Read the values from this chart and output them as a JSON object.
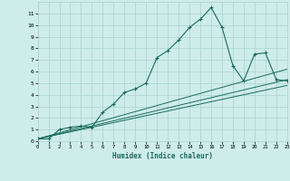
{
  "xlabel": "Humidex (Indice chaleur)",
  "bg_color": "#ceecea",
  "grid_color": "#aad4d0",
  "line_color": "#1a6b5e",
  "xlim": [
    0,
    23
  ],
  "ylim": [
    0,
    12
  ],
  "xticks": [
    0,
    1,
    2,
    3,
    4,
    5,
    6,
    7,
    8,
    9,
    10,
    11,
    12,
    13,
    14,
    15,
    16,
    17,
    18,
    19,
    20,
    21,
    22,
    23
  ],
  "yticks": [
    0,
    1,
    2,
    3,
    4,
    5,
    6,
    7,
    8,
    9,
    10,
    11
  ],
  "series1_x": [
    0,
    1,
    2,
    3,
    4,
    5,
    6,
    7,
    8,
    9,
    10,
    11,
    12,
    13,
    14,
    15,
    16,
    17,
    18,
    19,
    20,
    21,
    22,
    23
  ],
  "series1_y": [
    0.2,
    0.2,
    1.0,
    1.2,
    1.3,
    1.2,
    2.5,
    3.2,
    4.2,
    4.5,
    5.0,
    7.2,
    7.8,
    8.7,
    9.8,
    10.5,
    11.5,
    9.8,
    6.5,
    5.2,
    7.5,
    7.6,
    5.3,
    5.2
  ],
  "series2_x": [
    0,
    23
  ],
  "series2_y": [
    0.2,
    5.3
  ],
  "series3_x": [
    0,
    23
  ],
  "series3_y": [
    0.2,
    4.8
  ],
  "series4_x": [
    0,
    23
  ],
  "series4_y": [
    0.2,
    6.2
  ]
}
